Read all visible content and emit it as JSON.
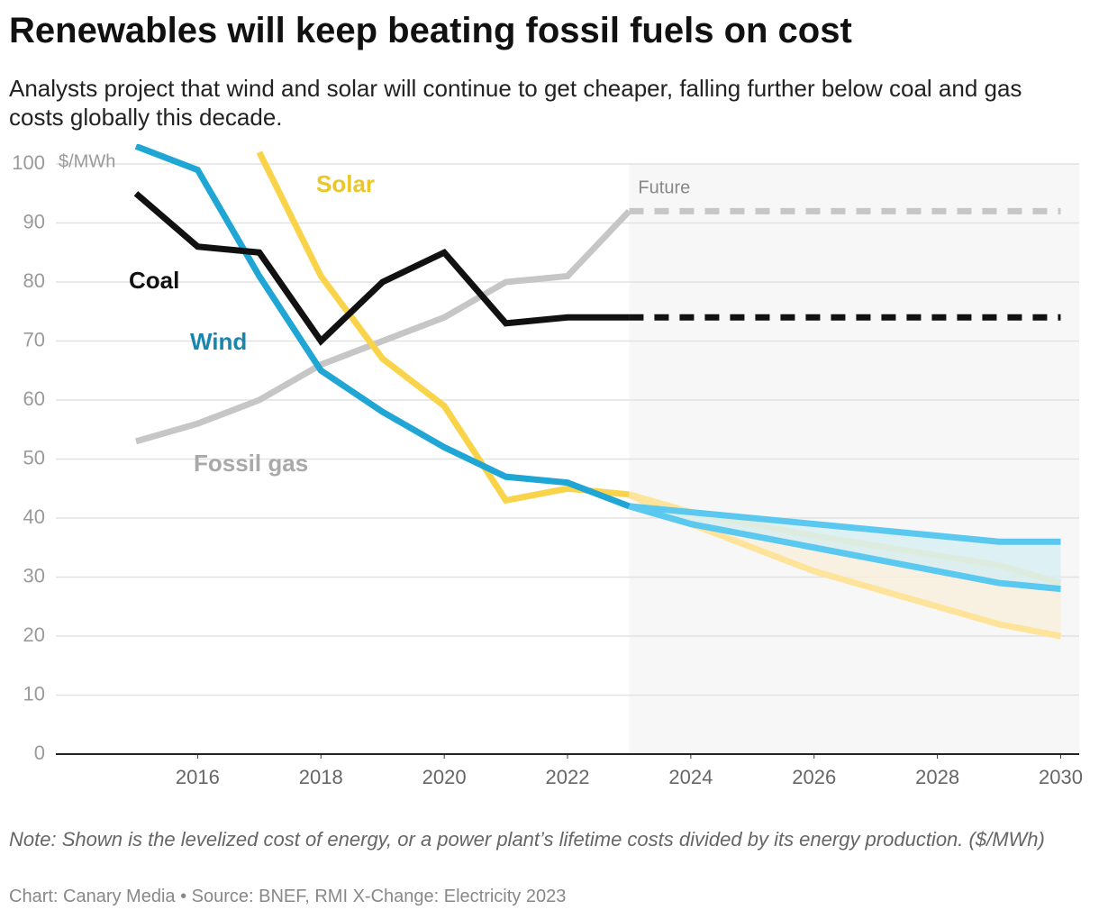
{
  "chart_data": {
    "type": "line",
    "title": "Renewables will keep beating fossil fuels on cost",
    "subtitle": "Analysts project that wind and solar will continue to get cheaper, falling further below coal and gas costs globally this decade.",
    "y_unit": "$/MWh",
    "future_label": "Future",
    "future_start": 2023,
    "note": "Note: Shown is the levelized cost of energy, or a power plant’s lifetime costs divided by its energy production. ($/MWh)",
    "source": "Chart: Canary Media • Source: BNEF, RMI X-Change: Electricity 2023",
    "xlim": [
      2013.7,
      2030.3
    ],
    "xticks": [
      2016,
      2018,
      2020,
      2022,
      2024,
      2026,
      2028,
      2030
    ],
    "ylim": [
      0,
      100
    ],
    "yticks": [
      0,
      10,
      20,
      30,
      40,
      50,
      60,
      70,
      80,
      90,
      100
    ],
    "grid": true,
    "series": [
      {
        "name": "Fossil gas",
        "color": "#c6c6c6",
        "label_color": "#a9a9a9",
        "x": [
          2015,
          2016,
          2017,
          2018,
          2019,
          2020,
          2021,
          2022,
          2023
        ],
        "values": [
          53,
          56,
          60,
          66,
          70,
          74,
          80,
          81,
          92
        ]
      },
      {
        "color": "#c6c6c6",
        "dashed": true,
        "x": [
          2023,
          2030
        ],
        "values": [
          92,
          92
        ]
      },
      {
        "type": "range",
        "color": "#fde49a",
        "fill": "#f8efdc",
        "x": [
          2023,
          2024,
          2026,
          2029,
          2030
        ],
        "low": [
          44,
          39,
          31,
          22,
          20
        ],
        "high": [
          44,
          41,
          37,
          32,
          29
        ]
      },
      {
        "type": "range",
        "color": "#5bc8f0",
        "fill": "#d6edf1",
        "x": [
          2023,
          2024,
          2026,
          2029,
          2030
        ],
        "low": [
          42,
          39,
          35,
          29,
          28
        ],
        "high": [
          42,
          41,
          39,
          36,
          36
        ]
      },
      {
        "name": "Solar",
        "color": "#f9d44a",
        "label_color": "#ebc62b",
        "x": [
          2017,
          2018,
          2019,
          2020,
          2021,
          2022,
          2023
        ],
        "values": [
          102,
          81,
          67,
          59,
          43,
          45,
          44
        ]
      },
      {
        "name": "Wind",
        "color": "#1fa6d5",
        "label_color": "#1a86ad",
        "x": [
          2015,
          2016,
          2017,
          2018,
          2019,
          2020,
          2021,
          2022,
          2023
        ],
        "values": [
          103,
          99,
          81,
          65,
          58,
          52,
          47,
          46,
          42
        ]
      },
      {
        "name": "Coal",
        "color": "#111111",
        "label_color": "#111111",
        "x": [
          2015,
          2016,
          2017,
          2018,
          2019,
          2020,
          2021,
          2022,
          2023
        ],
        "values": [
          95,
          86,
          85,
          70,
          80,
          85,
          73,
          74,
          74
        ]
      },
      {
        "color": "#111111",
        "dashed": true,
        "x": [
          2023,
          2030
        ],
        "values": [
          74,
          74
        ]
      }
    ]
  }
}
